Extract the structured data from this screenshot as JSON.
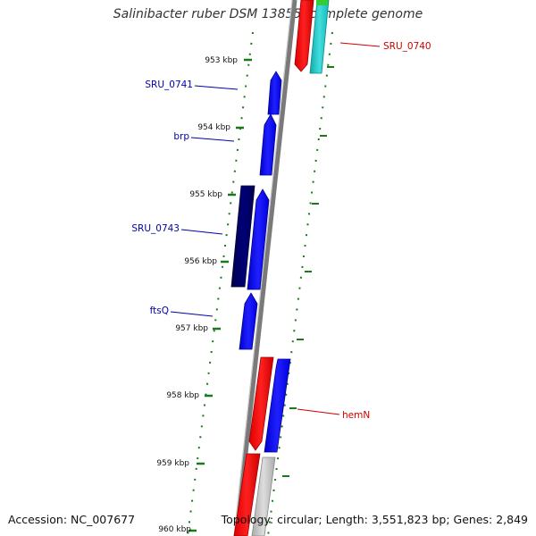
{
  "title": "Salinibacter ruber DSM 13855, complete genome",
  "footer": {
    "accession": "Accession: NC_007677",
    "info": "Topology: circular; Length: 3,551,823 bp; Genes: 2,849"
  },
  "ticks": [
    "953 kbp",
    "954 kbp",
    "955 kbp",
    "956 kbp",
    "957 kbp",
    "958 kbp",
    "959 kbp",
    "960 kbp"
  ],
  "gene_labels": [
    {
      "text": "SRU_0740",
      "color": "#cc0000"
    },
    {
      "text": "SRU_0741",
      "color": "#0000aa"
    },
    {
      "text": "brp",
      "color": "#0000aa"
    },
    {
      "text": "SRU_0743",
      "color": "#0000aa"
    },
    {
      "text": "ftsQ",
      "color": "#0000aa"
    },
    {
      "text": "hemN",
      "color": "#cc0000"
    }
  ],
  "colors": {
    "backbone": "#7a7a7a",
    "tick": "#1a7a1a",
    "gene_blue": "#0000ff",
    "gene_navy": "#000066",
    "gene_red": "#ff0000",
    "gene_cyan": "#22cccc",
    "gene_green": "#33cc33",
    "gene_gray": "#bbbbbb"
  }
}
